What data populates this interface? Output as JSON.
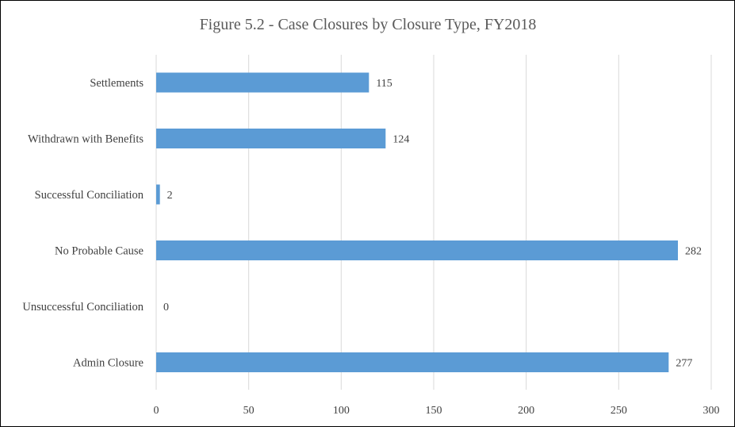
{
  "chart_data": {
    "type": "bar",
    "orientation": "horizontal",
    "title": "Figure 5.2 - Case Closures by Closure Type, FY2018",
    "categories": [
      "Settlements",
      "Withdrawn with Benefits",
      "Successful Conciliation",
      "No Probable Cause",
      "Unsuccessful Conciliation",
      "Admin Closure"
    ],
    "values": [
      115,
      124,
      2,
      282,
      0,
      277
    ],
    "data_labels": [
      "115",
      "124",
      "2",
      "282",
      "0",
      "277"
    ],
    "xlim": [
      0,
      300
    ],
    "x_ticks": [
      0,
      50,
      100,
      150,
      200,
      250,
      300
    ],
    "x_tick_labels": [
      "0",
      "50",
      "100",
      "150",
      "200",
      "250",
      "300"
    ],
    "xlabel": "",
    "ylabel": "",
    "grid": "vertical",
    "legend": "none",
    "bar_color": "#5b9bd5"
  }
}
